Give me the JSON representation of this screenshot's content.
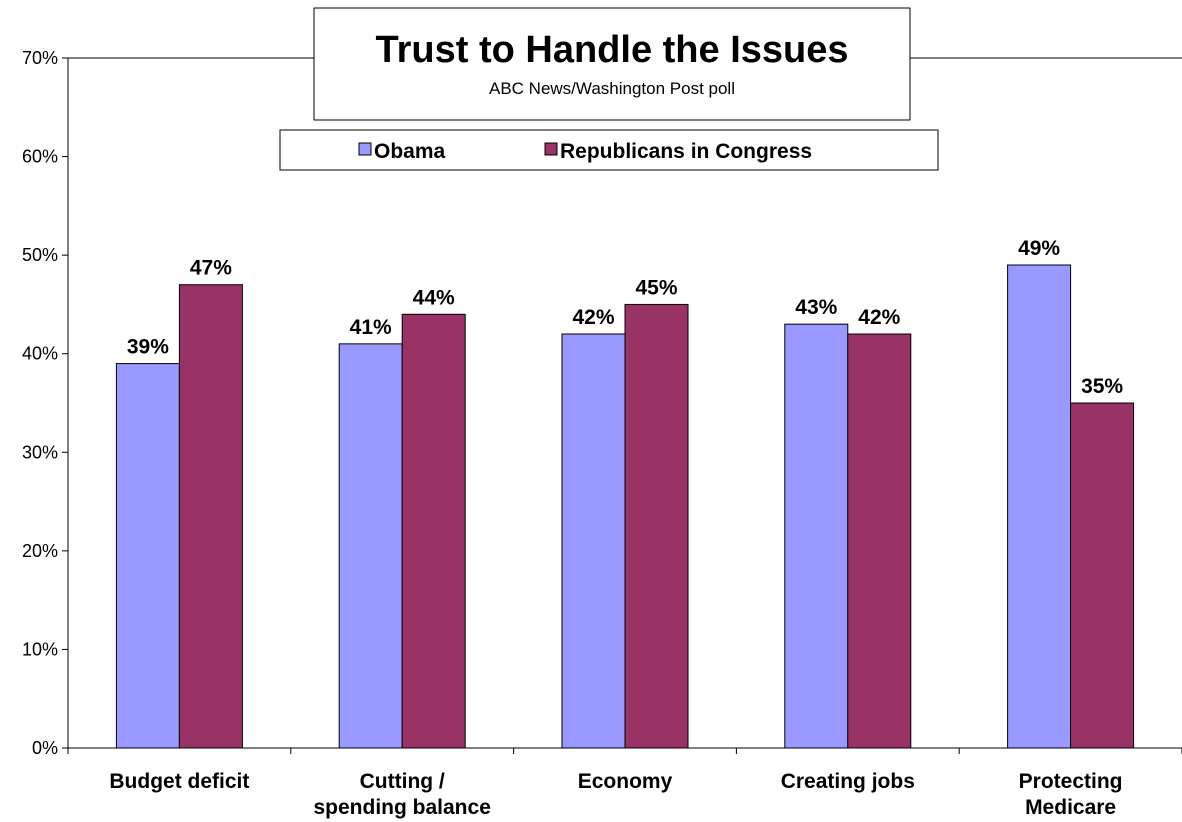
{
  "chart_data": {
    "type": "bar",
    "title": "Trust to Handle the Issues",
    "subtitle": "ABC News/Washington Post poll",
    "categories": [
      [
        "Budget deficit"
      ],
      [
        "Cutting /",
        "spending balance"
      ],
      [
        "Economy"
      ],
      [
        "Creating jobs"
      ],
      [
        "Protecting",
        "Medicare"
      ]
    ],
    "series": [
      {
        "name": "Obama",
        "values": [
          39,
          41,
          42,
          43,
          49
        ],
        "color": "#9999ff"
      },
      {
        "name": "Republicans in Congress",
        "values": [
          47,
          44,
          45,
          42,
          35
        ],
        "color": "#993366"
      }
    ],
    "value_suffix": "%",
    "ylim": [
      0,
      70
    ],
    "yticks": [
      0,
      10,
      20,
      30,
      40,
      50,
      60,
      70
    ],
    "grid": false,
    "legend_position": "top-center"
  }
}
